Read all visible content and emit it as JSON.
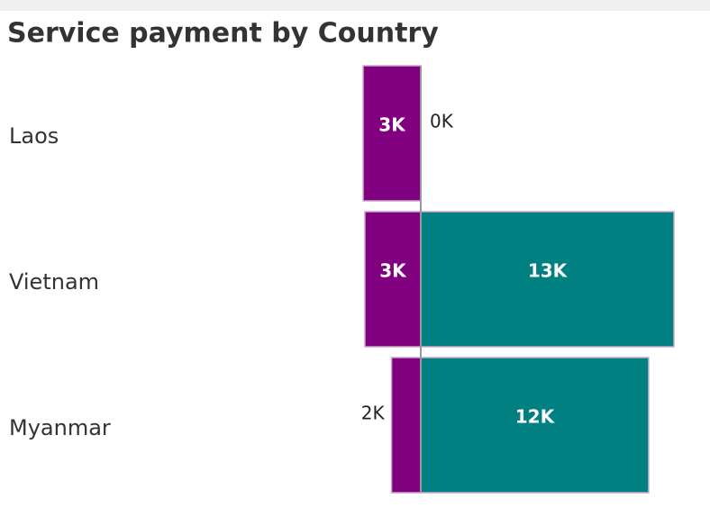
{
  "chart_data": {
    "type": "diverging-bar",
    "title": "Service payment by Country",
    "categories": [
      "Laos",
      "Vietnam",
      "Myanmar"
    ],
    "series": [
      {
        "color": "#800080",
        "values": [
          2960,
          2870,
          1500
        ],
        "value_labels": [
          "3K",
          "3K",
          "2K"
        ]
      },
      {
        "color": "#008080",
        "values": [
          0,
          13000,
          11700
        ],
        "value_labels": [
          "0K",
          "13K",
          "12K"
        ]
      }
    ]
  }
}
